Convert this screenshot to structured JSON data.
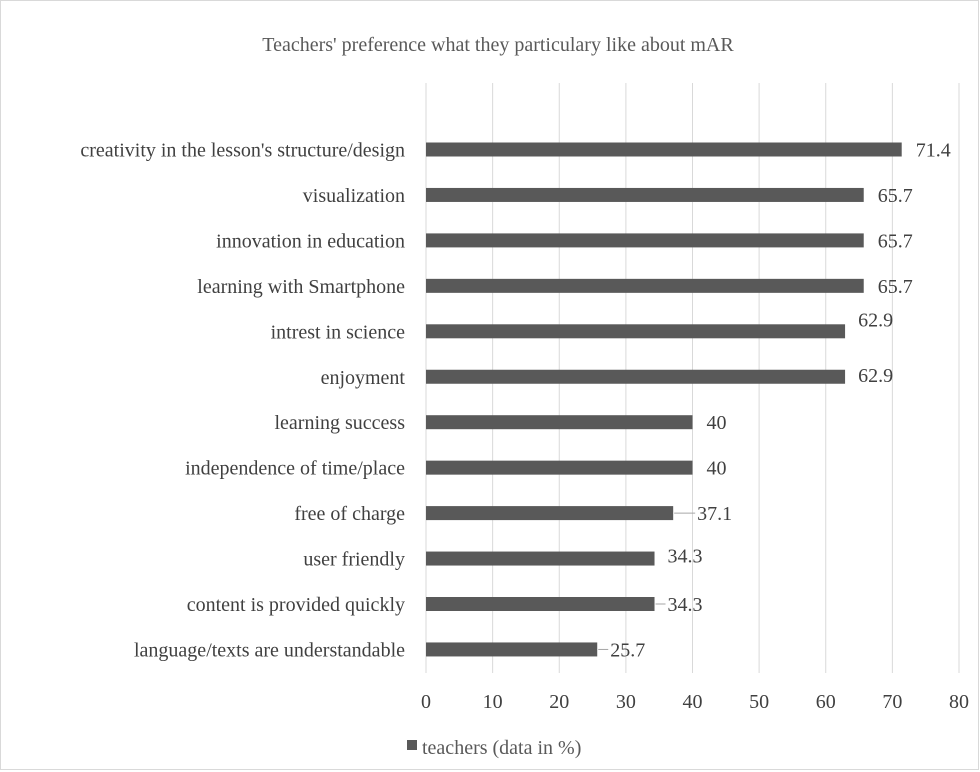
{
  "chart_data": {
    "type": "bar",
    "orientation": "horizontal",
    "title": "Teachers' preference what they particulary like about mAR",
    "categories": [
      "creativity in the lesson's structure/design",
      "visualization",
      "innovation in education",
      "learning with Smartphone",
      "intrest in science",
      "enjoyment",
      "learning success",
      "independence of time/place",
      "free of charge",
      "user friendly",
      "content is provided quickly",
      "language/texts are understandable"
    ],
    "series": [
      {
        "name": "teachers (data in %)",
        "color": "#595959",
        "values": [
          71.4,
          65.7,
          65.7,
          65.7,
          62.9,
          62.9,
          40,
          40,
          37.1,
          34.3,
          34.3,
          25.7
        ]
      }
    ],
    "data_labels": [
      "71.4",
      "65.7",
      "65.7",
      "65.7",
      "62.9",
      "62.9",
      "40",
      "40",
      "37.1",
      "34.3",
      "34.3",
      "25.7"
    ],
    "xlim": [
      0,
      80
    ],
    "x_ticks": [
      0,
      10,
      20,
      30,
      40,
      50,
      60,
      70,
      80
    ],
    "x_tick_labels": [
      "0",
      "10",
      "20",
      "30",
      "40",
      "50",
      "60",
      "70",
      "80"
    ],
    "xlabel": "",
    "ylabel": "",
    "grid": true,
    "legend_position": "bottom-left"
  }
}
